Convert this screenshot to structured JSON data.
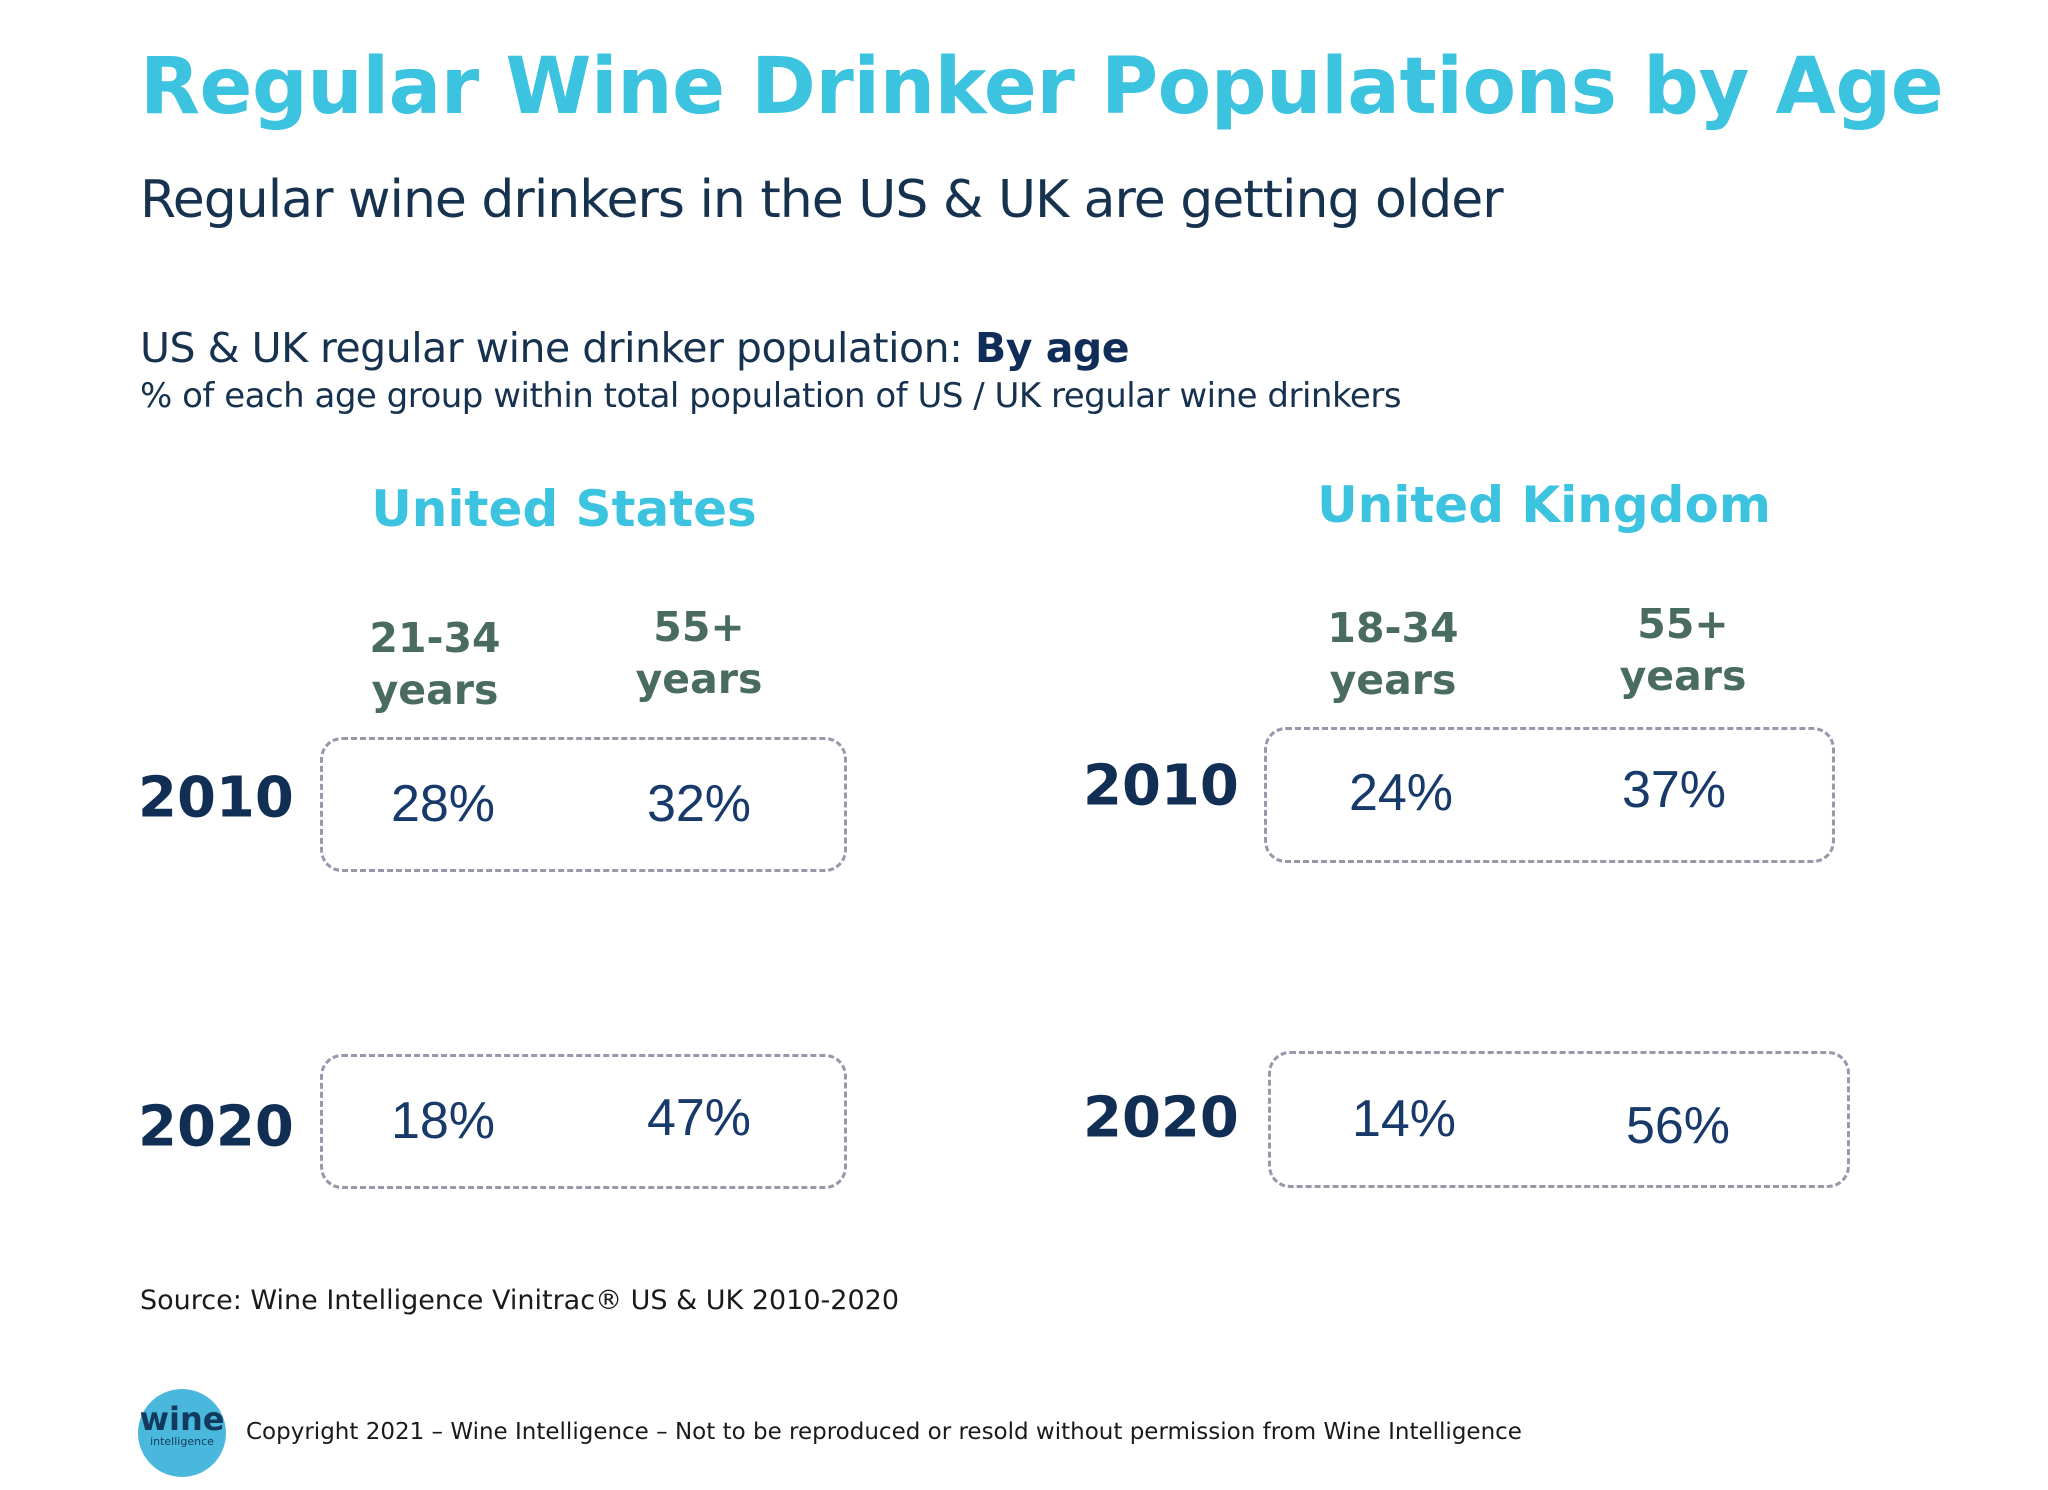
{
  "header": {
    "title": "Regular Wine Drinker Populations by Age",
    "subtitle": "Regular wine drinkers in the US & UK are getting older"
  },
  "chart_data": {
    "type": "table",
    "title_prefix": "US & UK regular wine drinker population: ",
    "title_bold": "By age",
    "subtitle": "% of each age group within total population of US / UK regular wine drinkers",
    "panels": [
      {
        "country": "United States",
        "age_groups": [
          {
            "line1": "21-34",
            "line2": "years"
          },
          {
            "line1": "55+",
            "line2": "years"
          }
        ],
        "rows": [
          {
            "year": "2010",
            "values": [
              "28%",
              "32%"
            ]
          },
          {
            "year": "2020",
            "values": [
              "18%",
              "47%"
            ]
          }
        ]
      },
      {
        "country": "United Kingdom",
        "age_groups": [
          {
            "line1": "18-34",
            "line2": "years"
          },
          {
            "line1": "55+",
            "line2": "years"
          }
        ],
        "rows": [
          {
            "year": "2010",
            "values": [
              "24%",
              "37%"
            ]
          },
          {
            "year": "2020",
            "values": [
              "14%",
              "56%"
            ]
          }
        ]
      }
    ],
    "colors": {
      "title": "#3cc3e0",
      "age_header": "#4a6b5f",
      "value": "#173a6a",
      "year": "#112e55",
      "box_border": "#9a96ab"
    }
  },
  "footer": {
    "source": "Source: Wine Intelligence Vinitrac® US & UK 2010-2020",
    "logo_text": "wine",
    "logo_subtext": "intelligence",
    "copyright": "Copyright 2021 – Wine Intelligence – Not to be reproduced or resold without permission from Wine Intelligence"
  }
}
